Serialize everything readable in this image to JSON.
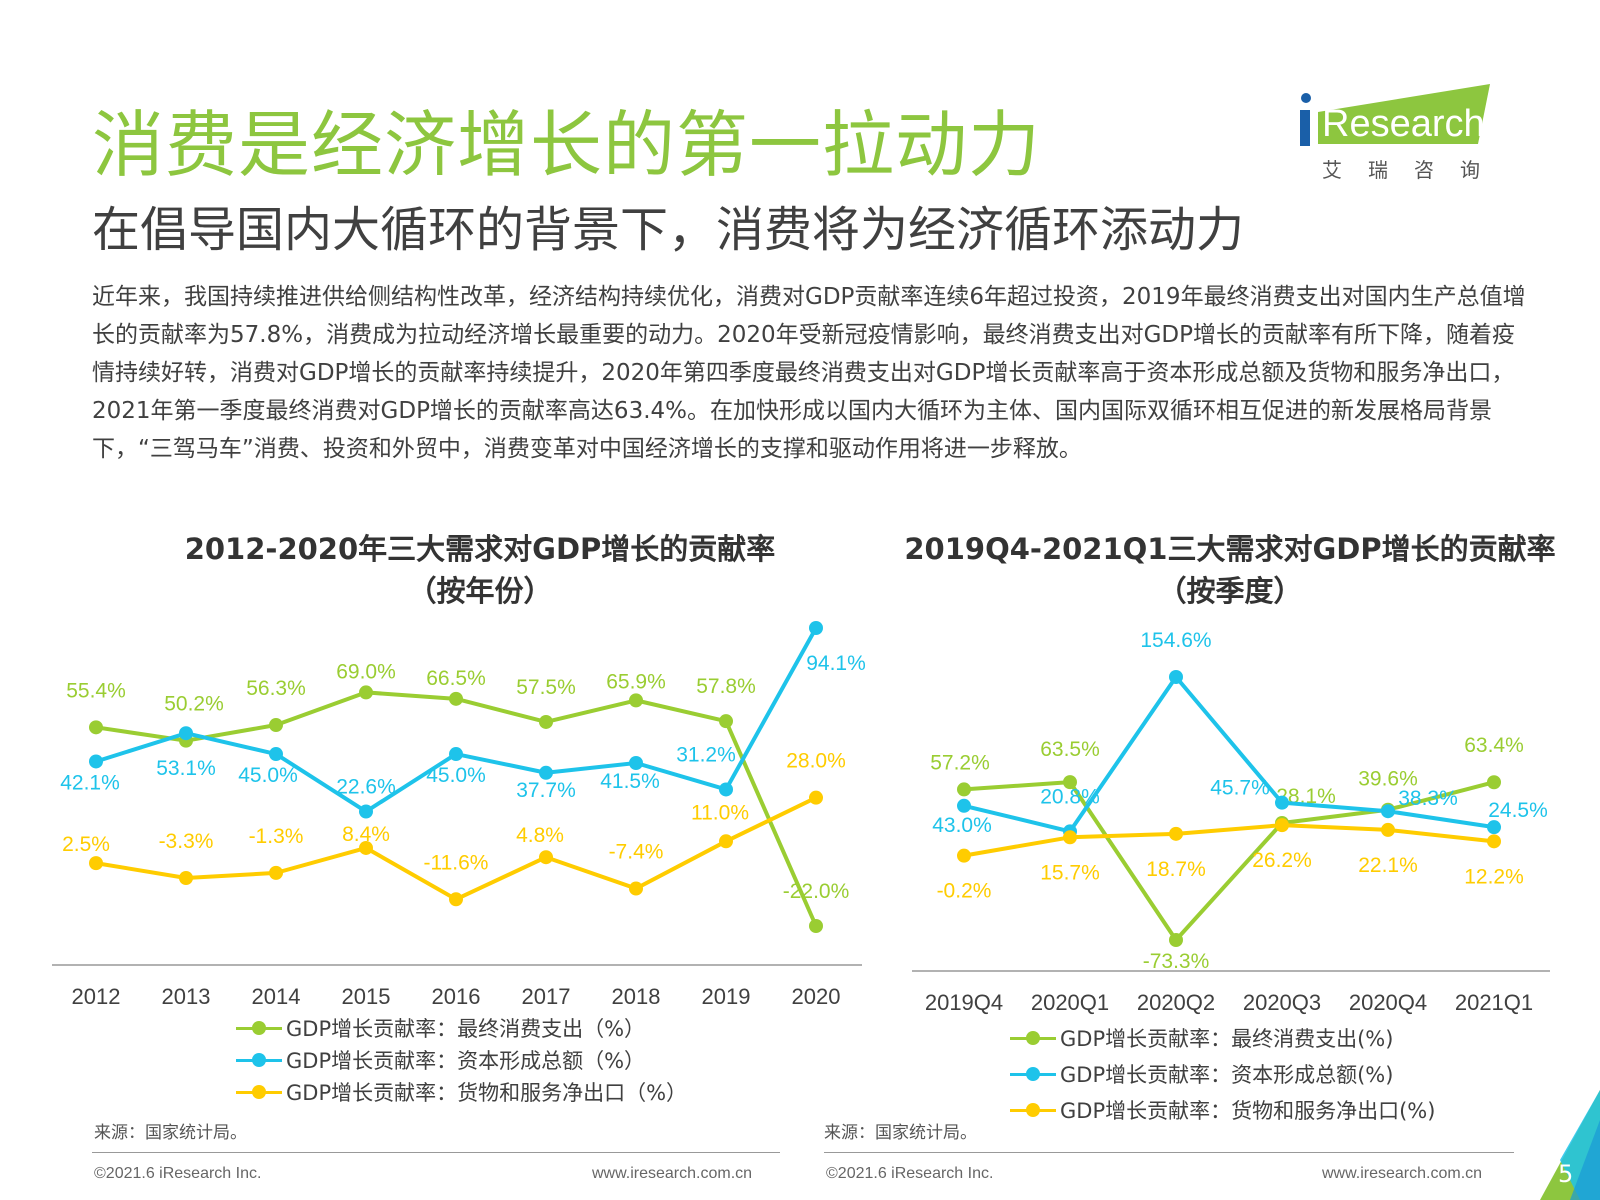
{
  "header": {
    "title": "消费是经济增长的第一拉动力",
    "subtitle": "在倡导国内大循环的背景下，消费将为经济循环添动力",
    "body": "近年来，我国持续推进供给侧结构性改革，经济结构持续优化，消费对GDP贡献率连续6年超过投资，2019年最终消费支出对国内生产总值增长的贡献率为57.8%，消费成为拉动经济增长最重要的动力。2020年受新冠疫情影响，最终消费支出对GDP增长的贡献率有所下降，随着疫情持续好转，消费对GDP增长的贡献率持续提升，2020年第四季度最终消费支出对GDP增长贡献率高于资本形成总额及货物和服务净出口，2021年第一季度最终消费对GDP增长的贡献率高达63.4%。在加快形成以国内大循环为主体、国内国际双循环相互促进的新发展格局背景下，“三驾马车”消费、投资和外贸中，消费变革对中国经济增长的支撑和驱动作用将进一步释放。"
  },
  "logo": {
    "text": "iResearch",
    "sub": "艾瑞咨询",
    "colors": {
      "bg": "#8dc63f",
      "dot": "#1a5fa8"
    }
  },
  "colors": {
    "consumption": "#9acd32",
    "capital": "#1ec3ea",
    "export": "#ffcc00",
    "title": "#8dc63f",
    "axis": "#999999"
  },
  "chart_data": [
    {
      "type": "line",
      "title": "2012-2020年三大需求对GDP增长的贡献率",
      "subtitle": "（按年份）",
      "categories": [
        "2012",
        "2013",
        "2014",
        "2015",
        "2016",
        "2017",
        "2018",
        "2019",
        "2020"
      ],
      "series": [
        {
          "name": "GDP增长贡献率：最终消费支出（%）",
          "values": [
            55.4,
            50.2,
            56.3,
            69.0,
            66.5,
            57.5,
            65.9,
            57.8,
            -22.0
          ],
          "labels": [
            "55.4%",
            "50.2%",
            "56.3%",
            "69.0%",
            "66.5%",
            "57.5%",
            "65.9%",
            "57.8%",
            "-22.0%"
          ]
        },
        {
          "name": "GDP增长贡献率：资本形成总额（%）",
          "values": [
            42.1,
            53.1,
            45.0,
            22.6,
            45.0,
            37.7,
            41.5,
            31.2,
            94.1
          ],
          "labels": [
            "42.1%",
            "53.1%",
            "45.0%",
            "22.6%",
            "45.0%",
            "37.7%",
            "41.5%",
            "31.2%",
            "94.1%"
          ]
        },
        {
          "name": "GDP增长贡献率：货物和服务净出口（%）",
          "values": [
            2.5,
            -3.3,
            -1.3,
            8.4,
            -11.6,
            4.8,
            -7.4,
            11.0,
            28.0
          ],
          "labels": [
            "2.5%",
            "-3.3%",
            "-1.3%",
            "8.4%",
            "-11.6%",
            "4.8%",
            "-7.4%",
            "11.0%",
            "28.0%"
          ]
        }
      ],
      "source": "来源：国家统计局。"
    },
    {
      "type": "line",
      "title": "2019Q4-2021Q1三大需求对GDP增长的贡献率",
      "subtitle": "（按季度）",
      "categories": [
        "2019Q4",
        "2020Q1",
        "2020Q2",
        "2020Q3",
        "2020Q4",
        "2021Q1"
      ],
      "series": [
        {
          "name": "GDP增长贡献率：最终消费支出(%)",
          "values": [
            57.2,
            63.5,
            -73.3,
            28.1,
            39.6,
            63.4
          ],
          "labels": [
            "57.2%",
            "63.5%",
            "-73.3%",
            "28.1%",
            "39.6%",
            "63.4%"
          ]
        },
        {
          "name": "GDP增长贡献率：资本形成总额(%)",
          "values": [
            43.0,
            20.8,
            154.6,
            45.7,
            38.3,
            24.5
          ],
          "labels": [
            "43.0%",
            "20.8%",
            "154.6%",
            "45.7%",
            "38.3%",
            "24.5%"
          ]
        },
        {
          "name": "GDP增长贡献率：货物和服务净出口(%)",
          "values": [
            -0.2,
            15.7,
            18.7,
            26.2,
            22.1,
            12.2
          ],
          "labels": [
            "-0.2%",
            "15.7%",
            "18.7%",
            "26.2%",
            "22.1%",
            "12.2%"
          ]
        }
      ],
      "source": "来源：国家统计局。"
    }
  ],
  "footer": {
    "left_copyright": "©2021.6 iResearch Inc.",
    "left_url": "www.iresearch.com.cn",
    "right_copyright": "©2021.6 iResearch Inc.",
    "right_url": "www.iresearch.com.cn",
    "page_number": "5"
  }
}
